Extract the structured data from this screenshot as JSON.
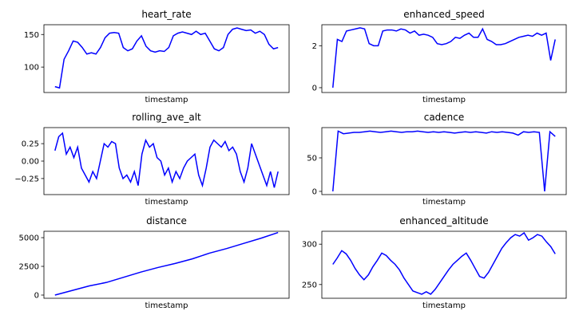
{
  "chart_data": [
    {
      "type": "line",
      "title": "heart_rate",
      "x_label": "timestamp",
      "color": "#0000ff",
      "ylim": [
        61,
        165
      ],
      "yticks": [
        100,
        150
      ],
      "values": [
        70,
        68,
        112,
        125,
        140,
        138,
        130,
        120,
        122,
        120,
        130,
        145,
        152,
        153,
        152,
        130,
        125,
        128,
        140,
        148,
        132,
        125,
        123,
        125,
        124,
        130,
        148,
        152,
        154,
        152,
        150,
        155,
        150,
        152,
        140,
        128,
        125,
        130,
        150,
        158,
        160,
        158,
        156,
        157,
        152,
        155,
        150,
        135,
        128,
        130
      ]
    },
    {
      "type": "line",
      "title": "enhanced_speed",
      "x_label": "timestamp",
      "color": "#0000ff",
      "ylim": [
        -0.23,
        3.0
      ],
      "yticks": [
        0,
        2
      ],
      "values": [
        0,
        2.3,
        2.2,
        2.7,
        2.75,
        2.8,
        2.85,
        2.8,
        2.1,
        2.0,
        2.0,
        2.7,
        2.75,
        2.75,
        2.7,
        2.8,
        2.75,
        2.6,
        2.7,
        2.5,
        2.55,
        2.5,
        2.4,
        2.1,
        2.05,
        2.1,
        2.2,
        2.4,
        2.35,
        2.5,
        2.6,
        2.4,
        2.4,
        2.8,
        2.3,
        2.2,
        2.05,
        2.05,
        2.1,
        2.2,
        2.3,
        2.4,
        2.45,
        2.5,
        2.45,
        2.6,
        2.5,
        2.6,
        1.3,
        2.3
      ]
    },
    {
      "type": "line",
      "title": "rolling_ave_alt",
      "x_label": "timestamp",
      "color": "#0000ff",
      "ylim": [
        -0.48,
        0.48
      ],
      "yticks": [
        {
          "value": -0.25,
          "label": "−0.25"
        },
        {
          "value": 0,
          "label": "0.00"
        },
        0.25
      ],
      "values": [
        0.15,
        0.35,
        0.4,
        0.1,
        0.2,
        0.05,
        0.2,
        -0.1,
        -0.2,
        -0.3,
        -0.15,
        -0.25,
        0.0,
        0.25,
        0.2,
        0.28,
        0.25,
        -0.1,
        -0.25,
        -0.2,
        -0.3,
        -0.15,
        -0.35,
        0.1,
        0.3,
        0.2,
        0.25,
        0.05,
        0.0,
        -0.2,
        -0.1,
        -0.3,
        -0.15,
        -0.25,
        -0.1,
        0.0,
        0.05,
        0.1,
        -0.2,
        -0.35,
        -0.1,
        0.2,
        0.3,
        0.25,
        0.2,
        0.28,
        0.15,
        0.2,
        0.1,
        -0.15,
        -0.3,
        -0.1,
        0.25,
        0.1,
        -0.05,
        -0.2,
        -0.35,
        -0.15,
        -0.38,
        -0.15
      ]
    },
    {
      "type": "line",
      "title": "cadence",
      "x_label": "timestamp",
      "color": "#0000ff",
      "ylim": [
        -4.8,
        95.2
      ],
      "yticks": [
        0,
        50
      ],
      "values": [
        0,
        90,
        86,
        87,
        88,
        88,
        89,
        90,
        89,
        88,
        89,
        90,
        89,
        88,
        89,
        89,
        90,
        89,
        88,
        89,
        88,
        89,
        88,
        87,
        88,
        89,
        88,
        89,
        88,
        87,
        89,
        88,
        89,
        88,
        87,
        84,
        89,
        88,
        89,
        88,
        0,
        89,
        82
      ]
    },
    {
      "type": "line",
      "title": "distance",
      "x_label": "timestamp",
      "color": "#0000ff",
      "ylim": [
        -278,
        5556
      ],
      "yticks": [
        0,
        2500,
        5000
      ],
      "values": [
        0,
        400,
        800,
        1100,
        1550,
        2000,
        2400,
        2750,
        3150,
        3650,
        4050,
        4500,
        4950,
        5450
      ]
    },
    {
      "type": "line",
      "title": "enhanced_altitude",
      "x_label": "timestamp",
      "color": "#0000ff",
      "ylim": [
        233,
        316
      ],
      "yticks": [
        250,
        300
      ],
      "values": [
        275,
        283,
        292,
        288,
        280,
        270,
        262,
        256,
        262,
        272,
        280,
        289,
        286,
        280,
        275,
        268,
        258,
        250,
        242,
        240,
        238,
        241,
        238,
        244,
        252,
        260,
        268,
        275,
        280,
        285,
        289,
        280,
        270,
        260,
        258,
        265,
        275,
        285,
        295,
        302,
        308,
        312,
        310,
        314,
        305,
        308,
        312,
        310,
        303,
        297,
        288
      ]
    }
  ]
}
